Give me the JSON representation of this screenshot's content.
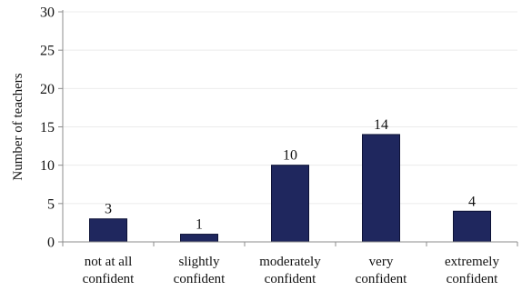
{
  "chart_data": {
    "type": "bar",
    "title": "",
    "xlabel": "",
    "ylabel": "Number of teachers",
    "categories": [
      [
        "not at all",
        "confident"
      ],
      [
        "slightly",
        "confident"
      ],
      [
        "moderately",
        "confident"
      ],
      [
        "very",
        "confident"
      ],
      [
        "extremely",
        "confident"
      ]
    ],
    "values": [
      3,
      1,
      10,
      14,
      4
    ],
    "data_labels": [
      "3",
      "1",
      "10",
      "14",
      "4"
    ],
    "ylim": [
      0,
      30
    ],
    "yticks": [
      "0",
      "5",
      "10",
      "15",
      "20",
      "25",
      "30"
    ],
    "grid": true,
    "legend": "none",
    "colors": {
      "bar": "#1f275e",
      "bar_stroke": "#0d1236",
      "gridline": "#ececec",
      "axis": "#8c8c8c"
    }
  }
}
